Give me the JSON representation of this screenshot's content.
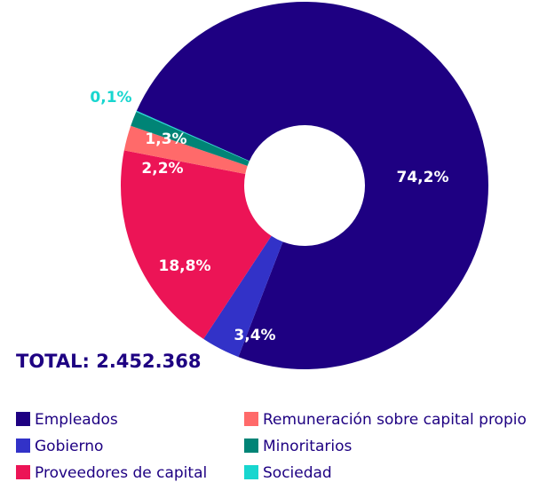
{
  "chart_data": {
    "type": "donut",
    "categories": [
      "Empleados",
      "Gobierno",
      "Proveedores de capital",
      "Remuneración sobre capital propio",
      "Minoritarios",
      "Sociedad"
    ],
    "values": [
      74.2,
      3.4,
      18.8,
      2.2,
      1.3,
      0.1
    ],
    "value_labels": [
      "74,2%",
      "3,4%",
      "18,8%",
      "2,2%",
      "1,3%",
      "0,1%"
    ],
    "colors": [
      "#1e0082",
      "#3232c8",
      "#ec1456",
      "#ff6a6a",
      "#008476",
      "#18d6cf"
    ],
    "total": "TOTAL: 2.452.368"
  }
}
